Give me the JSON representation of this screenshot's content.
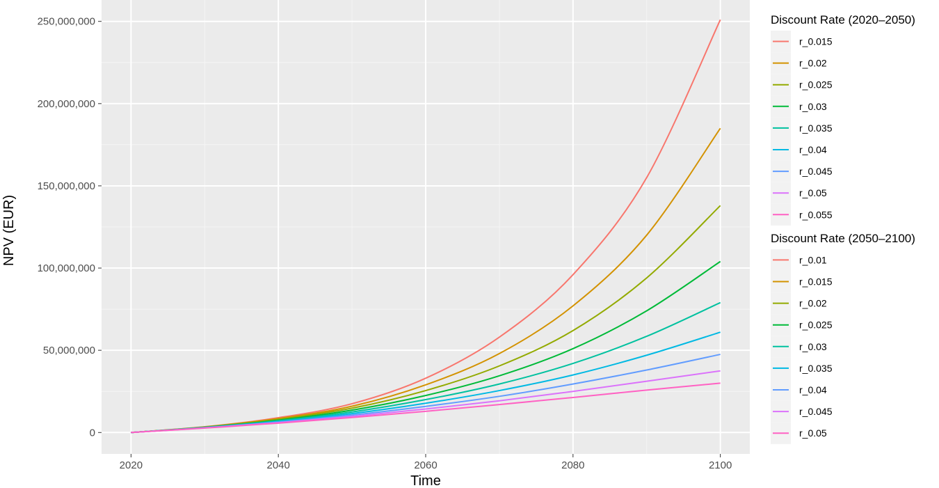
{
  "chart_data": {
    "type": "line",
    "xlabel": "Time",
    "ylabel": "NPV (EUR)",
    "xlim": [
      2016,
      2104
    ],
    "ylim": [
      -13000000,
      263000000
    ],
    "x_ticks": [
      2020,
      2040,
      2060,
      2080,
      2100
    ],
    "x_tick_labels": [
      "2020",
      "2040",
      "2060",
      "2080",
      "2100"
    ],
    "y_ticks": [
      0,
      50000000,
      100000000,
      150000000,
      200000000,
      250000000
    ],
    "y_tick_labels": [
      "0",
      "50,000,000",
      "100,000,000",
      "150,000,000",
      "200,000,000",
      "250,000,000"
    ],
    "grid": true,
    "panel_background": "#ebebeb",
    "legend_position": "right",
    "x": [
      2020,
      2030,
      2040,
      2050,
      2060,
      2070,
      2080,
      2090,
      2100
    ],
    "series": [
      {
        "color": "#F8766D",
        "values": [
          0,
          3500000,
          9000000,
          17500000,
          33000000,
          58000000,
          96000000,
          155000000,
          251000000
        ]
      },
      {
        "color": "#D39200",
        "values": [
          0,
          3400000,
          8500000,
          16000000,
          29000000,
          48000000,
          77000000,
          120000000,
          185000000
        ]
      },
      {
        "color": "#93AA00",
        "values": [
          0,
          3300000,
          8000000,
          14800000,
          25500000,
          40500000,
          62000000,
          94000000,
          138000000
        ]
      },
      {
        "color": "#00BA38",
        "values": [
          0,
          3200000,
          7500000,
          13600000,
          22500000,
          34500000,
          51000000,
          74000000,
          104000000
        ]
      },
      {
        "color": "#00C19F",
        "values": [
          0,
          3100000,
          7100000,
          12500000,
          20000000,
          29500000,
          42000000,
          58500000,
          79000000
        ]
      },
      {
        "color": "#00B9E3",
        "values": [
          0,
          3000000,
          6700000,
          11500000,
          17800000,
          25500000,
          35000000,
          47000000,
          61000000
        ]
      },
      {
        "color": "#619CFF",
        "values": [
          0,
          2900000,
          6300000,
          10600000,
          15900000,
          22000000,
          29500000,
          38000000,
          47500000
        ]
      },
      {
        "color": "#DB72FB",
        "values": [
          0,
          2800000,
          6000000,
          9800000,
          14300000,
          19300000,
          25000000,
          31200000,
          37500000
        ]
      },
      {
        "color": "#FF61C3",
        "values": [
          0,
          2700000,
          5700000,
          9100000,
          12900000,
          17000000,
          21300000,
          25800000,
          30000000
        ]
      }
    ],
    "legends": [
      {
        "title": "Discount Rate (2020–2050)",
        "items": [
          {
            "label": "r_0.015",
            "color": "#F8766D"
          },
          {
            "label": "r_0.02",
            "color": "#D39200"
          },
          {
            "label": "r_0.025",
            "color": "#93AA00"
          },
          {
            "label": "r_0.03",
            "color": "#00BA38"
          },
          {
            "label": "r_0.035",
            "color": "#00C19F"
          },
          {
            "label": "r_0.04",
            "color": "#00B9E3"
          },
          {
            "label": "r_0.045",
            "color": "#619CFF"
          },
          {
            "label": "r_0.05",
            "color": "#DB72FB"
          },
          {
            "label": "r_0.055",
            "color": "#FF61C3"
          }
        ]
      },
      {
        "title": "Discount Rate (2050–2100)",
        "items": [
          {
            "label": "r_0.01",
            "color": "#F8766D"
          },
          {
            "label": "r_0.015",
            "color": "#D39200"
          },
          {
            "label": "r_0.02",
            "color": "#93AA00"
          },
          {
            "label": "r_0.025",
            "color": "#00BA38"
          },
          {
            "label": "r_0.03",
            "color": "#00C19F"
          },
          {
            "label": "r_0.035",
            "color": "#00B9E3"
          },
          {
            "label": "r_0.04",
            "color": "#619CFF"
          },
          {
            "label": "r_0.045",
            "color": "#DB72FB"
          },
          {
            "label": "r_0.05",
            "color": "#FF61C3"
          }
        ]
      }
    ]
  }
}
